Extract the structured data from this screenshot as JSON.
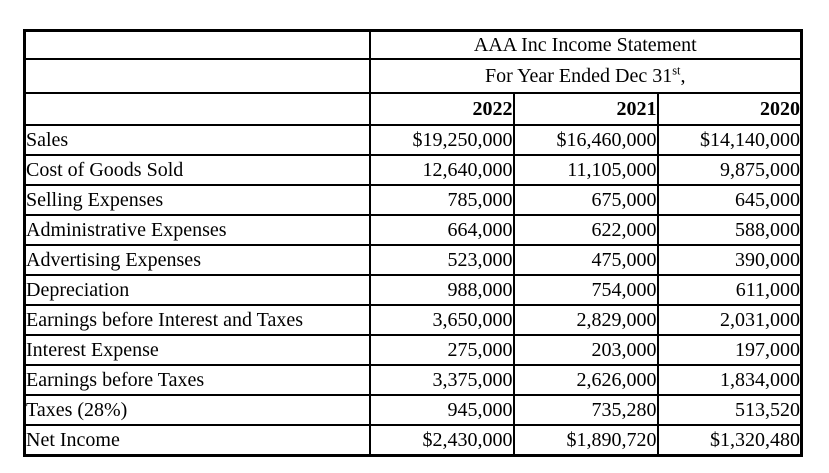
{
  "table": {
    "title": "AAA Inc Income Statement",
    "subtitle_prefix": "For Year Ended Dec 31",
    "subtitle_sup": "st",
    "subtitle_suffix": ",",
    "years": [
      "2022",
      "2021",
      "2020"
    ],
    "rows": [
      {
        "label": "Sales",
        "values": [
          "$19,250,000",
          "$16,460,000",
          "$14,140,000"
        ]
      },
      {
        "label": "Cost of Goods Sold",
        "values": [
          "12,640,000",
          "11,105,000",
          "9,875,000"
        ]
      },
      {
        "label": "Selling Expenses",
        "values": [
          "785,000",
          "675,000",
          "645,000"
        ]
      },
      {
        "label": "Administrative Expenses",
        "values": [
          "664,000",
          "622,000",
          "588,000"
        ]
      },
      {
        "label": "Advertising Expenses",
        "values": [
          "523,000",
          "475,000",
          "390,000"
        ]
      },
      {
        "label": "Depreciation",
        "values": [
          "988,000",
          "754,000",
          "611,000"
        ]
      },
      {
        "label": "Earnings before Interest and Taxes",
        "values": [
          "3,650,000",
          "2,829,000",
          "2,031,000"
        ]
      },
      {
        "label": "Interest Expense",
        "values": [
          "275,000",
          "203,000",
          "197,000"
        ]
      },
      {
        "label": "Earnings before Taxes",
        "values": [
          "3,375,000",
          "2,626,000",
          "1,834,000"
        ]
      },
      {
        "label": "Taxes (28%)",
        "values": [
          "945,000",
          "735,280",
          "513,520"
        ]
      },
      {
        "label": "Net Income",
        "values": [
          "$2,430,000",
          "$1,890,720",
          "$1,320,480"
        ]
      }
    ],
    "colors": {
      "border": "#000000",
      "text": "#000000",
      "background": "#ffffff"
    }
  }
}
